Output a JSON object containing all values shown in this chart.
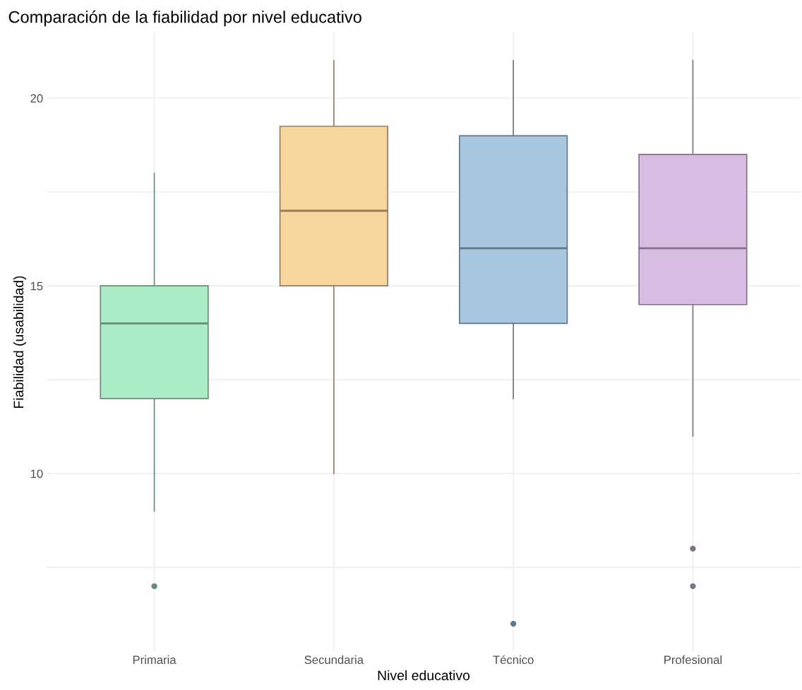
{
  "chart_data": {
    "type": "box",
    "title": "Comparación de la fiabilidad por nivel educativo",
    "xlabel": "Nivel educativo",
    "ylabel": "Fiabilidad (usabilidad)",
    "categories": [
      "Primaria",
      "Secundaria",
      "Técnico",
      "Profesional"
    ],
    "colors": [
      "#abebc6",
      "#f8d49e",
      "#a9c6e0",
      "#d7bde2"
    ],
    "boxes": [
      {
        "low": 9,
        "q1": 12,
        "median": 14,
        "q3": 15,
        "high": 18,
        "outliers": [
          7
        ]
      },
      {
        "low": 10,
        "q1": 15,
        "median": 17,
        "q3": 19.25,
        "high": 21
      },
      {
        "low": 12,
        "q1": 14,
        "median": 16,
        "q3": 19,
        "high": 21,
        "outliers": [
          6
        ]
      },
      {
        "low": 11,
        "q1": 14.5,
        "median": 16,
        "q3": 18.5,
        "high": 21,
        "outliers": [
          7,
          8
        ]
      }
    ],
    "ylim": [
      5.25,
      21.75
    ],
    "yticks": [
      {
        "value": 7.5,
        "label": null
      },
      10,
      {
        "value": 12.5,
        "label": null
      },
      15,
      {
        "value": 17.5,
        "label": null
      },
      20
    ],
    "grid": true
  }
}
